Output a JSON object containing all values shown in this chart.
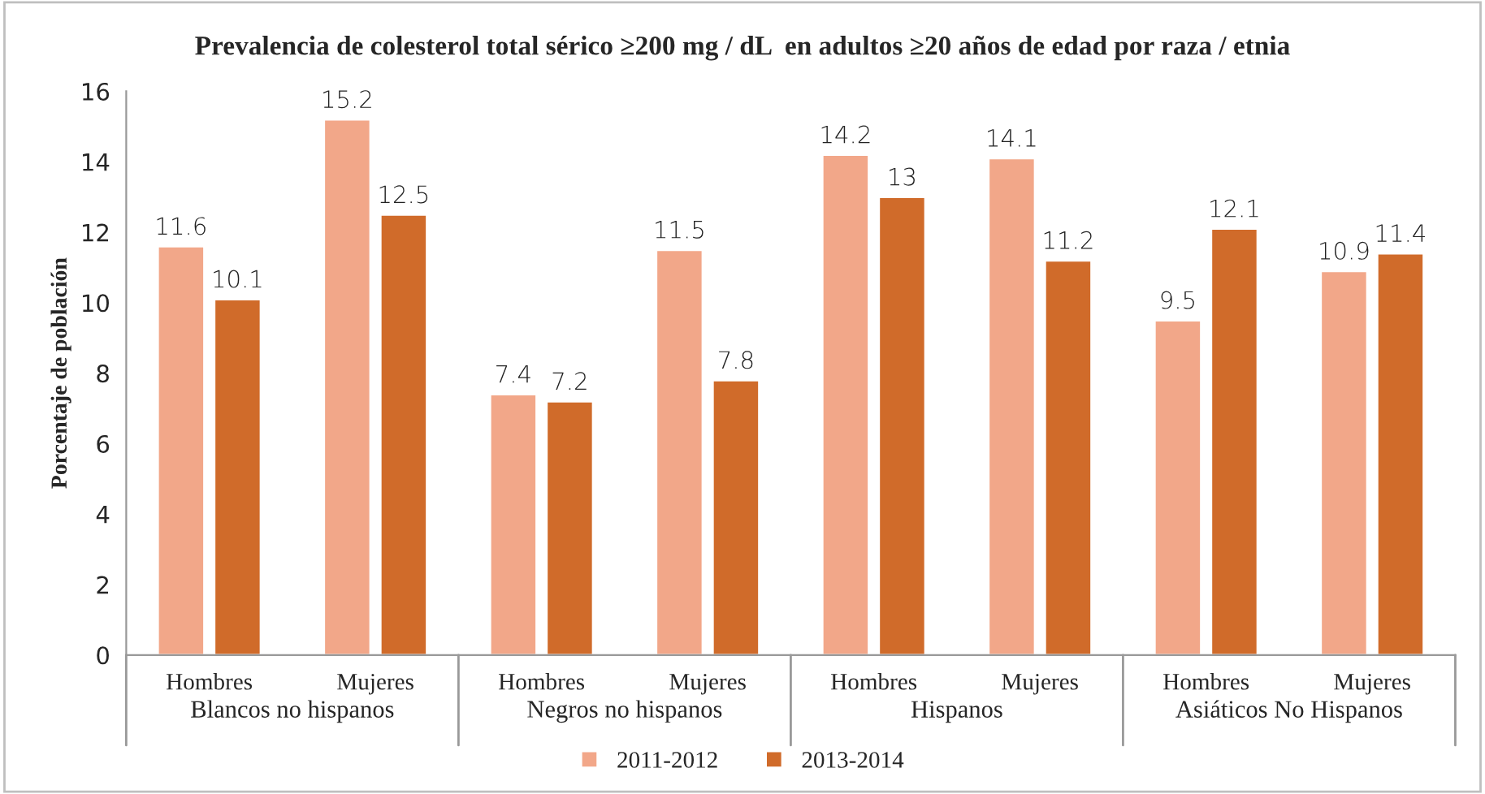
{
  "chart_data": {
    "type": "bar",
    "title": "Prevalencia de colesterol total sérico ≥200 mg / dL  en adultos ≥20 años de edad por raza / etnia",
    "ylabel": "Porcentaje de población",
    "categories": [
      "Hombres",
      "Mujeres",
      "Hombres",
      "Mujeres",
      "Hombres",
      "Mujeres",
      "Hombres",
      "Mujeres"
    ],
    "series": [
      {
        "name": "2011-2012",
        "color": "#f2a789",
        "values": [
          11.6,
          15.2,
          7.4,
          11.5,
          14.2,
          14.1,
          9.5,
          10.9
        ]
      },
      {
        "name": "2013-2014",
        "color": "#d06b2a",
        "values": [
          10.1,
          12.5,
          7.2,
          7.8,
          13,
          11.2,
          12.1,
          11.4
        ]
      }
    ],
    "annotations": [
      "Blancos no hispanos",
      "Negros no hispanos",
      "Hispanos",
      "Asiáticos No Hispanos"
    ],
    "ylim": [
      0,
      16
    ],
    "yticks": [
      0,
      2,
      4,
      6,
      8,
      10,
      12,
      14,
      16
    ],
    "grid": false,
    "legend": "bottom",
    "data_labels": true
  }
}
